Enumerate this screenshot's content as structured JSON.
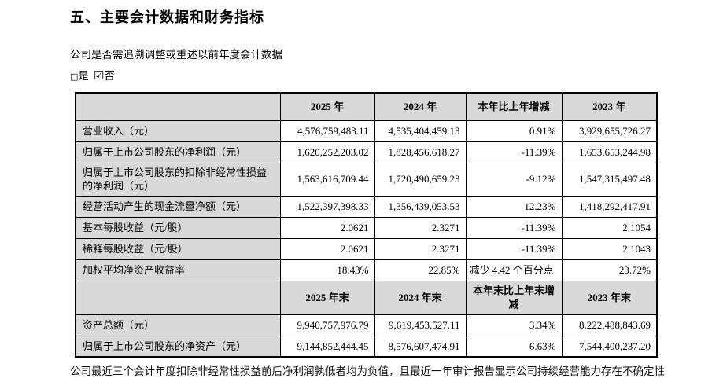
{
  "page": {
    "title": "五、主要会计数据和财务指标",
    "question": "公司是否需追溯调整或重述以前年度会计数据",
    "checkboxes": {
      "yes": {
        "box_icon": "□",
        "label": "是",
        "checked": false
      },
      "no": {
        "box_icon": "☑",
        "label": "否",
        "checked": true
      }
    },
    "footnote": "公司最近三个会计年度扣除非经常性损益前后净利润孰低者均为负值，且最近一年审计报告显示公司持续经营能力存在不确定性"
  },
  "colors": {
    "header_bg": "#d9d9d9",
    "border": "#000000",
    "text": "#000000"
  },
  "table": {
    "header_annual": [
      "",
      "2025 年",
      "2024 年",
      "本年比上年增减",
      "2023 年"
    ],
    "rows_annual": [
      {
        "label": "营业收入（元）",
        "values": [
          "4,576,759,483.11",
          "4,535,404,459.13",
          "0.91%",
          "3,929,655,726.27"
        ]
      },
      {
        "label": "归属于上市公司股东的净利润（元）",
        "values": [
          "1,620,252,203.02",
          "1,828,456,618.27",
          "-11.39%",
          "1,653,653,244.98"
        ]
      },
      {
        "label": "归属于上市公司股东的扣除非经常性损益的净利润（元）",
        "values": [
          "1,563,616,709.44",
          "1,720,490,659.23",
          "-9.12%",
          "1,547,315,497.48"
        ]
      },
      {
        "label": "经营活动产生的现金流量净额（元）",
        "values": [
          "1,522,397,398.33",
          "1,356,439,053.53",
          "12.23%",
          "1,418,292,417.91"
        ]
      },
      {
        "label": "基本每股收益（元/股）",
        "values": [
          "2.0621",
          "2.3271",
          "-11.39%",
          "2.1054"
        ]
      },
      {
        "label": "稀释每股收益（元/股）",
        "values": [
          "2.0621",
          "2.3271",
          "-11.39%",
          "2.1043"
        ]
      },
      {
        "label": "加权平均净资产收益率",
        "values": [
          "18.43%",
          "22.85%",
          "减少 4.42 个百分点",
          "23.72%"
        ]
      }
    ],
    "header_period_end": [
      "",
      "2025 年末",
      "2024 年末",
      "本年末比上年末增减",
      "2023 年末"
    ],
    "rows_period_end": [
      {
        "label": "资产总额（元）",
        "values": [
          "9,940,757,976.79",
          "9,619,453,527.11",
          "3.34%",
          "8,222,488,843.69"
        ]
      },
      {
        "label": "归属于上市公司股东的净资产（元）",
        "values": [
          "9,144,852,444.45",
          "8,576,607,474.91",
          "6.63%",
          "7,544,400,237.20"
        ]
      }
    ]
  }
}
